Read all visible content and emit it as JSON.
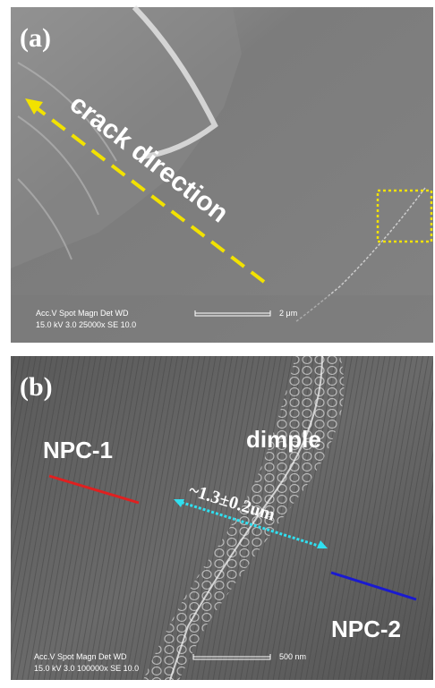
{
  "panel_a": {
    "label": "(a)",
    "annotation": "crack direction",
    "info_header": "Acc.V  Spot Magn   Det  WD",
    "info_values": "15.0 kV 3.0  25000x  SE  10.0",
    "scale_bar": "2 μm"
  },
  "panel_b": {
    "label": "(b)",
    "left_region": "NPC-1",
    "center_feature": "dimple",
    "width_annotation": "~1.3±0.2um",
    "right_region": "NPC-2",
    "info_header": "Acc.V  Spot Magn   Det  WD",
    "info_values": "15.0 kV 3.0  100000x SE  10.0",
    "scale_bar": "500 nm"
  }
}
